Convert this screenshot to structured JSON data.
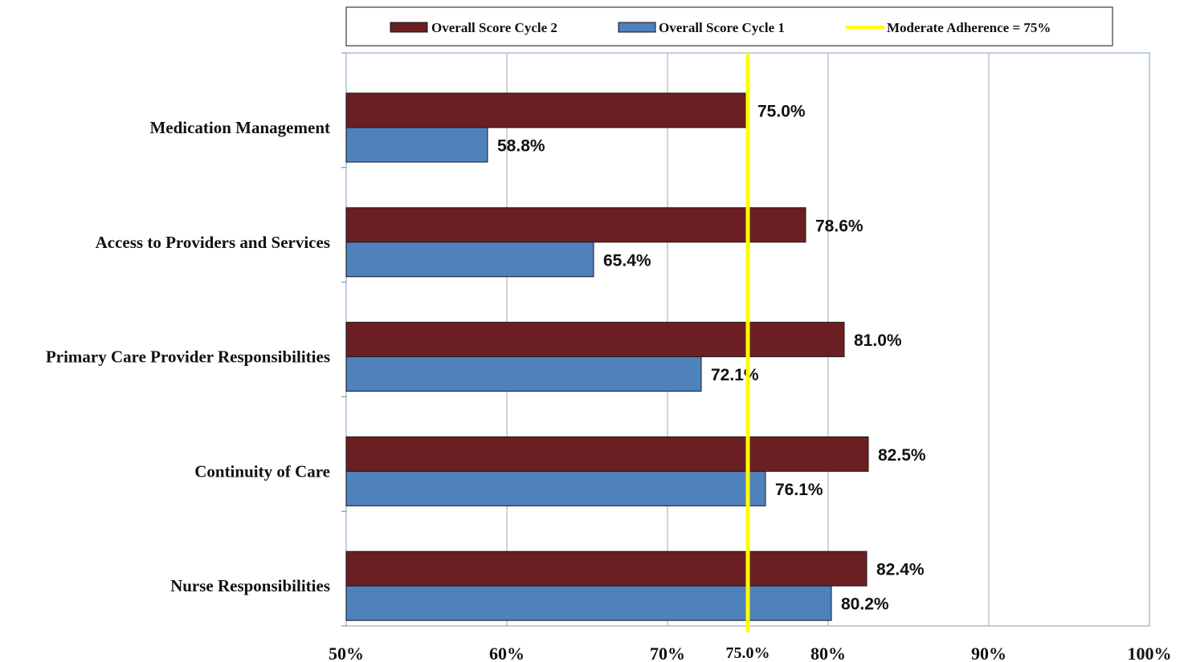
{
  "chart_data": {
    "type": "bar",
    "orientation": "horizontal",
    "categories": [
      "Medication Management",
      "Access to Providers and Services",
      "Primary Care Provider Responsibilities",
      "Continuity of Care",
      "Nurse Responsibilities"
    ],
    "series": [
      {
        "name": "Overall Score Cycle 2",
        "color": "#6B1F22",
        "values": [
          75.0,
          78.6,
          81.0,
          82.5,
          82.4
        ],
        "labels": [
          "75.0%",
          "78.6%",
          "81.0%",
          "82.5%",
          "82.4%"
        ]
      },
      {
        "name": "Overall Score Cycle 1",
        "color": "#4F81BD",
        "values": [
          58.8,
          65.4,
          72.1,
          76.1,
          80.2
        ],
        "labels": [
          "58.8%",
          "65.4%",
          "72.1%",
          "76.1%",
          "80.2%"
        ]
      }
    ],
    "reference_line": {
      "name": "Moderate Adherence = 75%",
      "value": 75,
      "color": "#FFFF00",
      "tick_label": "75.0%"
    },
    "xlim": [
      50,
      100
    ],
    "xticks": [
      50,
      60,
      70,
      80,
      90,
      100
    ],
    "xtick_labels": [
      "50%",
      "60%",
      "70%",
      "80%",
      "90%",
      "100%"
    ],
    "grid": true,
    "legend_position": "top",
    "title": "",
    "xlabel": "",
    "ylabel": ""
  }
}
